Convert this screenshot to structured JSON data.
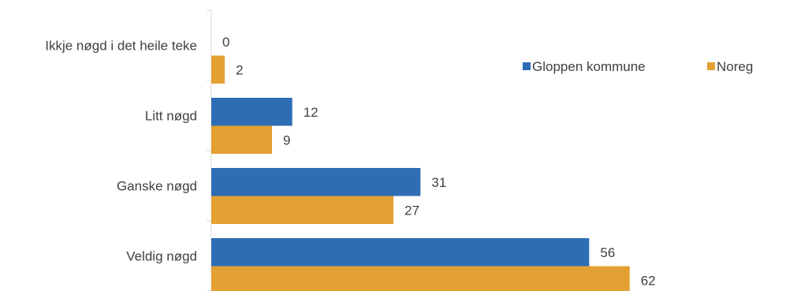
{
  "chart_data": {
    "type": "bar",
    "orientation": "horizontal",
    "categories": [
      "Ikkje nøgd i det heile teke",
      "Litt nøgd",
      "Ganske nøgd",
      "Veldig nøgd"
    ],
    "series": [
      {
        "name": "Gloppen kommune",
        "values": [
          0,
          12,
          31,
          56
        ],
        "labels": [
          "0",
          "12",
          "31",
          "56"
        ],
        "color": "#2E6DB4"
      },
      {
        "name": "Noreg",
        "values": [
          2,
          9,
          27,
          62
        ],
        "labels": [
          "2",
          "9",
          "27",
          "62"
        ],
        "color": "#E3A033"
      }
    ],
    "title": "",
    "xlabel": "",
    "ylabel": "",
    "xlim": [
      0,
      100
    ],
    "grid": false,
    "legend_position": "right"
  }
}
